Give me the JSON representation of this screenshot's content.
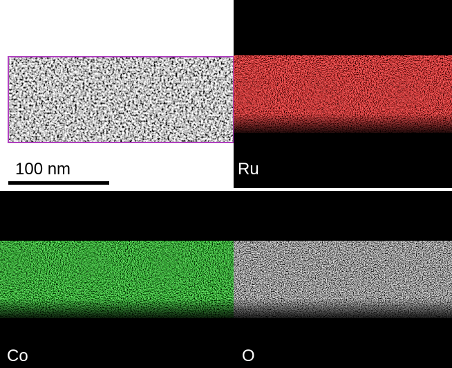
{
  "scale_bar": {
    "label": "100 nm"
  },
  "panels": [
    {
      "label": "Ru"
    },
    {
      "label": "Co"
    },
    {
      "label": "O"
    }
  ]
}
